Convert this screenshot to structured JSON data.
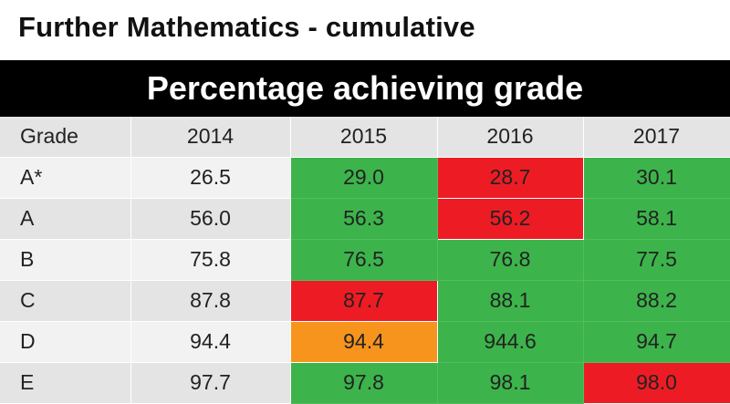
{
  "title": "Further Mathematics - cumulative",
  "banner": "Percentage achieving grade",
  "chart_data": {
    "type": "table",
    "columns": [
      "Grade",
      "2014",
      "2015",
      "2016",
      "2017"
    ],
    "rows": [
      {
        "grade": "A*",
        "values": [
          "26.5",
          "29.0",
          "28.7",
          "30.1"
        ],
        "status": [
          "none",
          "up",
          "down",
          "up"
        ]
      },
      {
        "grade": "A",
        "values": [
          "56.0",
          "56.3",
          "56.2",
          "58.1"
        ],
        "status": [
          "none",
          "up",
          "down",
          "up"
        ]
      },
      {
        "grade": "B",
        "values": [
          "75.8",
          "76.5",
          "76.8",
          "77.5"
        ],
        "status": [
          "none",
          "up",
          "up",
          "up"
        ]
      },
      {
        "grade": "C",
        "values": [
          "87.8",
          "87.7",
          "88.1",
          "88.2"
        ],
        "status": [
          "none",
          "down",
          "up",
          "up"
        ]
      },
      {
        "grade": "D",
        "values": [
          "94.4",
          "94.4",
          "944.6",
          "94.7"
        ],
        "status": [
          "none",
          "same",
          "up",
          "up"
        ]
      },
      {
        "grade": "E",
        "values": [
          "97.7",
          "97.8",
          "98.1",
          "98.0"
        ],
        "status": [
          "none",
          "up",
          "up",
          "down"
        ]
      }
    ]
  },
  "colors": {
    "up": "#3cb44b",
    "down": "#ed1c24",
    "same": "#f7941d",
    "header_bg": "#e4e4e4",
    "banner_bg": "#000000"
  }
}
